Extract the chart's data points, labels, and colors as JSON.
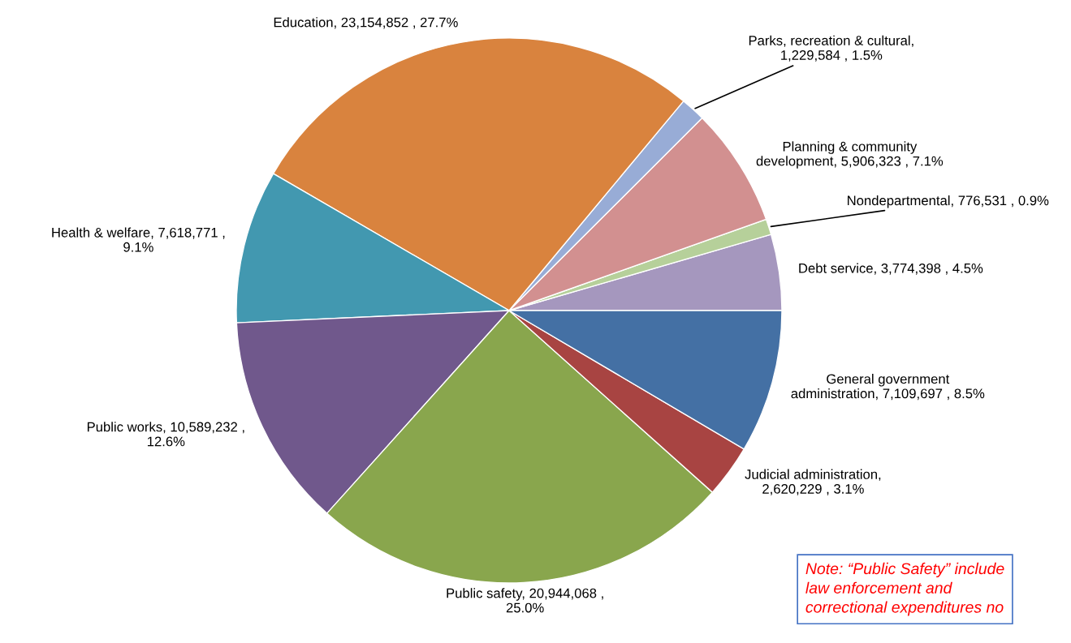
{
  "chart_data": {
    "type": "pie",
    "categories": [
      "Debt service",
      "Nondepartmental",
      "Planning & community\ndevelopment",
      "Parks, recreation & cultural",
      "Education",
      "Health & welfare",
      "Public works",
      "Public safety",
      "Judicial administration",
      "General government\nadministration"
    ],
    "values": [
      3774398,
      776531,
      5906323,
      1229584,
      23154852,
      7618771,
      10589232,
      20944068,
      2620229,
      7109697
    ],
    "value_labels": [
      ", 3,774,398 , 4.5%",
      ", 776,531 , 0.9%",
      ", 5,906,323 , 7.1%",
      ",\n1,229,584 , 1.5%",
      ", 23,154,852 , 27.7%",
      ", 7,618,771 ,\n9.1%",
      ", 10,589,232 ,\n12.6%",
      ", 20,944,068 ,\n25.0%",
      ",\n2,620,229 , 3.1%",
      ", 7,109,697 , 8.5%"
    ],
    "colors": [
      "#a597be",
      "#b6d09a",
      "#d29090",
      "#98acd6",
      "#d9833e",
      "#4298b0",
      "#70588c",
      "#89a64d",
      "#a84442",
      "#4470a4"
    ],
    "annotations": [
      "Note: “Public Safety” include\nlaw enforcement and\ncorrectional expenditures no"
    ]
  }
}
